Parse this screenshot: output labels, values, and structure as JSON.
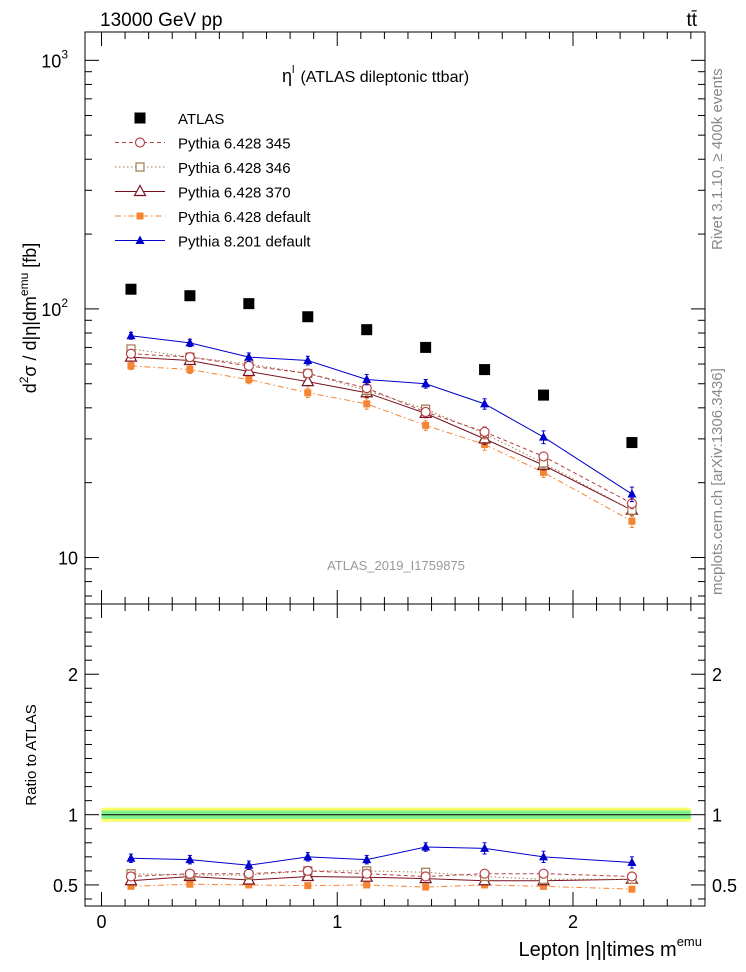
{
  "header": {
    "left": "13000 GeV pp",
    "right": "tt̄"
  },
  "side_labels": {
    "rivet": "Rivet 3.1.10, ≥ 400k events",
    "mcplots": "mcplots.cern.ch [arXiv:1306.3436]"
  },
  "chart_data": [
    {
      "type": "scatter",
      "panel": "main",
      "title_symbol": "η",
      "title_sup": "l",
      "title": "(ATLAS dileptonic ttbar)",
      "watermark": "ATLAS_2019_I1759875",
      "ylabel": {
        "prefix": "d",
        "sup1": "2",
        "mid": "σ / d|η|dm",
        "sup2": "emu",
        "suffix": " [fb]"
      },
      "yscale": "log",
      "ylim": [
        6.5,
        1300
      ],
      "xlim": [
        -0.07,
        2.56
      ],
      "yticks": [
        {
          "value": 10,
          "label": "10"
        },
        {
          "value": 100,
          "label": "10",
          "exp": "2"
        },
        {
          "value": 1000,
          "label": "10",
          "exp": "3"
        }
      ],
      "x": [
        0.125,
        0.375,
        0.625,
        0.875,
        1.125,
        1.375,
        1.625,
        1.875,
        2.25
      ],
      "series": [
        {
          "name": "ATLAS",
          "marker": "square-filled",
          "color": "#000000",
          "line": "none",
          "values": [
            120,
            113,
            105,
            93,
            82.5,
            70,
            57,
            45,
            29
          ]
        },
        {
          "name": "Pythia 6.428 345",
          "marker": "circle-open",
          "color": "#b5424a",
          "line": "dashed",
          "values": [
            66,
            64,
            59,
            55,
            48,
            38.5,
            32,
            25.5,
            16.5
          ],
          "err": [
            2,
            2,
            2,
            2,
            2,
            1.5,
            1.5,
            1,
            0.8
          ]
        },
        {
          "name": "Pythia 6.428 346",
          "marker": "square-open",
          "color": "#a0784a",
          "line": "dotted",
          "values": [
            69,
            64,
            60,
            55,
            47,
            39.5,
            31.5,
            24,
            15.5
          ],
          "err": [
            2,
            2,
            2,
            2,
            2,
            1.5,
            1.5,
            1,
            0.8
          ]
        },
        {
          "name": "Pythia 6.428 370",
          "marker": "triangle-open",
          "color": "#7a1020",
          "line": "solid",
          "values": [
            64,
            62,
            56,
            51,
            46,
            38,
            30,
            23.5,
            15.5
          ],
          "err": [
            2,
            2,
            2,
            2,
            2,
            1.5,
            1.5,
            1,
            0.8
          ]
        },
        {
          "name": "Pythia 6.428 default",
          "marker": "square-filled-small",
          "color": "#f58433",
          "line": "dashdot",
          "values": [
            59,
            57,
            52,
            46,
            41.5,
            34,
            28.5,
            22,
            14
          ],
          "err": [
            2,
            2,
            2,
            2,
            2,
            1.5,
            1.5,
            1,
            0.8
          ]
        },
        {
          "name": "Pythia 8.201 default",
          "marker": "triangle-filled",
          "color": "#0000cc",
          "line": "solid",
          "values": [
            78,
            73,
            64,
            62,
            52,
            50,
            41.5,
            30.5,
            18
          ],
          "err": [
            2.5,
            2.5,
            2.5,
            2.5,
            2.5,
            2,
            2,
            1.8,
            1.2
          ]
        }
      ]
    },
    {
      "type": "line",
      "panel": "ratio",
      "ylabel": "Ratio to ATLAS",
      "xlabel": {
        "main": "Lepton |η|times m",
        "sup": "emu"
      },
      "ylim": [
        0.35,
        2.5
      ],
      "xlim": [
        -0.07,
        2.56
      ],
      "yticks": [
        0.5,
        1,
        2
      ],
      "xticks": [
        0,
        1,
        2
      ],
      "band_range": [
        0,
        2.5
      ],
      "band_inner": [
        0.97,
        1.03
      ],
      "band_outer": [
        0.95,
        1.05
      ],
      "x": [
        0.125,
        0.375,
        0.625,
        0.875,
        1.125,
        1.375,
        1.625,
        1.875,
        2.25
      ],
      "series": [
        {
          "name": "Pythia 6.428 345",
          "values": [
            0.56,
            0.58,
            0.58,
            0.6,
            0.58,
            0.56,
            0.58,
            0.58,
            0.56
          ],
          "err": [
            0.015,
            0.015,
            0.015,
            0.015,
            0.015,
            0.015,
            0.015,
            0.015,
            0.015
          ]
        },
        {
          "name": "Pythia 6.428 346",
          "values": [
            0.58,
            0.57,
            0.57,
            0.6,
            0.6,
            0.59,
            0.56,
            0.54,
            0.54
          ],
          "err": [
            0.015,
            0.015,
            0.015,
            0.015,
            0.015,
            0.015,
            0.015,
            0.015,
            0.015
          ]
        },
        {
          "name": "Pythia 6.428 370",
          "values": [
            0.53,
            0.56,
            0.535,
            0.56,
            0.555,
            0.545,
            0.53,
            0.53,
            0.54
          ],
          "err": [
            0.015,
            0.015,
            0.015,
            0.015,
            0.015,
            0.015,
            0.015,
            0.015,
            0.015
          ]
        },
        {
          "name": "Pythia 6.428 default",
          "values": [
            0.49,
            0.505,
            0.5,
            0.495,
            0.5,
            0.485,
            0.5,
            0.49,
            0.47
          ],
          "err": [
            0.012,
            0.012,
            0.012,
            0.012,
            0.012,
            0.012,
            0.012,
            0.012,
            0.012
          ]
        },
        {
          "name": "Pythia 8.201 default",
          "values": [
            0.69,
            0.68,
            0.64,
            0.7,
            0.68,
            0.77,
            0.76,
            0.7,
            0.66
          ],
          "err": [
            0.03,
            0.03,
            0.03,
            0.03,
            0.03,
            0.03,
            0.04,
            0.04,
            0.04
          ]
        }
      ]
    }
  ]
}
